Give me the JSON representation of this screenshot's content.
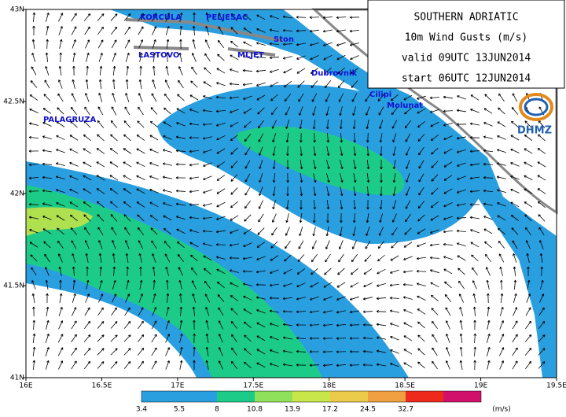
{
  "title_box": {
    "lines": [
      "SOUTHERN ADRIATIC",
      "10m Wind Gusts (m/s)",
      "valid 09UTC 13JUN2014",
      "start 06UTC 12JUN2014"
    ]
  },
  "logo": "DHMZ",
  "axes": {
    "x_labels": [
      "16E",
      "16.5E",
      "17E",
      "17.5E",
      "18E",
      "18.5E",
      "19E",
      "19.5E"
    ],
    "y_labels": [
      "41N",
      "41.5N",
      "42N",
      "42.5N",
      "43N"
    ]
  },
  "places": [
    {
      "label": "KORCULA"
    },
    {
      "label": "PELJESAC"
    },
    {
      "label": "Ston"
    },
    {
      "label": "LASTOVO"
    },
    {
      "label": "MLJET"
    },
    {
      "label": "Dubrovnik"
    },
    {
      "label": "Cilipi"
    },
    {
      "label": "Molunat"
    },
    {
      "label": "PALAGRUZA"
    }
  ],
  "colorbar": {
    "levels": [
      3.4,
      5.5,
      8,
      10.8,
      13.9,
      17.2,
      24.5,
      32.7
    ],
    "unit": "(m/s)",
    "colors": [
      "#2a9fe0",
      "#2a9fe0",
      "#1dcb88",
      "#8fe05a",
      "#c8e64a",
      "#eccb4a",
      "#f0a040",
      "#ee2a1c",
      "#d0106a"
    ]
  }
}
